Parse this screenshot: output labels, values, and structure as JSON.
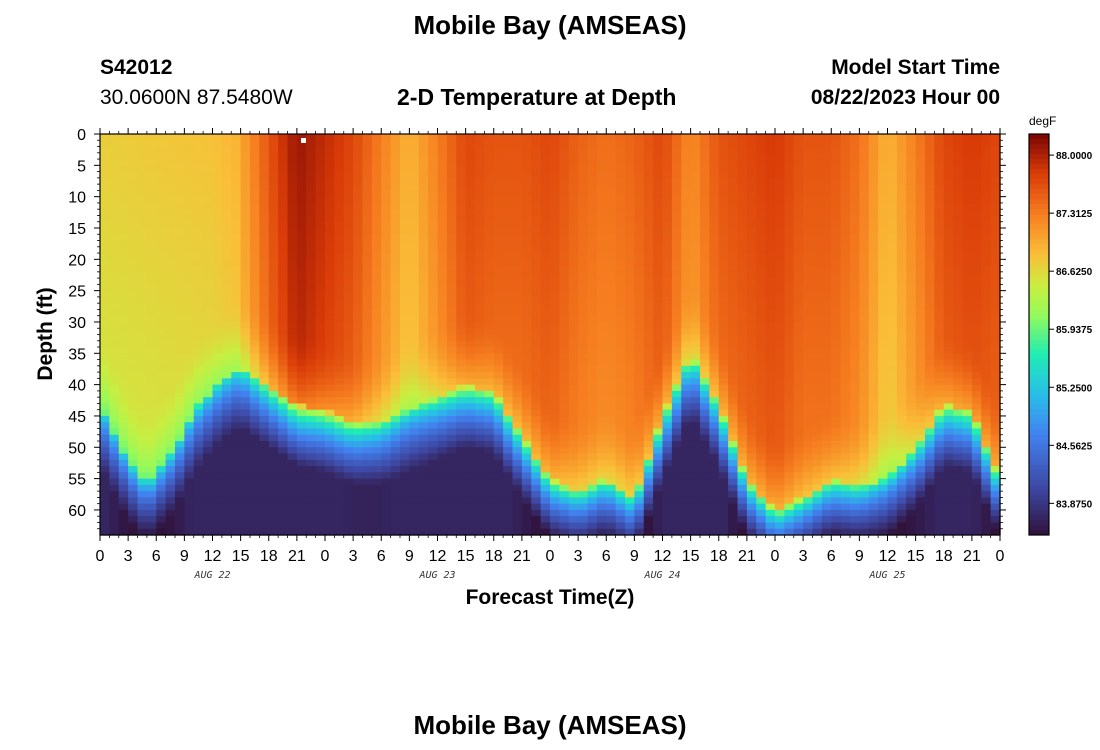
{
  "header": {
    "title": "Mobile Bay (AMSEAS)",
    "station_id": "S42012",
    "station_coords": "30.0600N  87.5480W",
    "plot_title": "2-D Temperature at Depth",
    "model_start_label": "Model Start Time",
    "model_start_value": "08/22/2023 Hour 00"
  },
  "footer": {
    "title": "Mobile Bay (AMSEAS)"
  },
  "chart_data": {
    "type": "heatmap",
    "title": "2-D Temperature at Depth",
    "xlabel": "Forecast Time(Z)",
    "ylabel": "Depth (ft)",
    "x_unit": "hours since 08/22/2023 00Z",
    "x_tick_labels": [
      "0",
      "3",
      "6",
      "9",
      "12",
      "15",
      "18",
      "21",
      "0",
      "3",
      "6",
      "9",
      "12",
      "15",
      "18",
      "21",
      "0",
      "3",
      "6",
      "9",
      "12",
      "15",
      "18",
      "21",
      "0",
      "3",
      "6",
      "9",
      "12",
      "15",
      "18",
      "21",
      "0"
    ],
    "x_day_labels": [
      "AUG 22",
      "AUG 23",
      "AUG 24",
      "AUG 25"
    ],
    "xlim": [
      0,
      96
    ],
    "ylim": [
      0,
      64
    ],
    "y_ticks": [
      0,
      5,
      10,
      15,
      20,
      25,
      30,
      35,
      40,
      45,
      50,
      55,
      60
    ],
    "colorbar": {
      "unit": "degF",
      "min": 83.5,
      "max": 88.25,
      "tick_values": [
        88.0,
        87.3125,
        86.625,
        85.9375,
        85.25,
        84.5625,
        83.875
      ],
      "tick_labels": [
        "88.0000",
        "87.3125",
        "86.6250",
        "85.9375",
        "85.2500",
        "84.5625",
        "83.8750"
      ]
    },
    "thermocline_depth_ft": {
      "hours": [
        0,
        3,
        5,
        8,
        10,
        13,
        15,
        18,
        21,
        24,
        27,
        30,
        33,
        36,
        39,
        42,
        45,
        48,
        51,
        54,
        57,
        60,
        63,
        66,
        69,
        72,
        75,
        78,
        81,
        84,
        87,
        90,
        93,
        96
      ],
      "values": [
        43,
        52,
        56,
        50,
        44,
        39,
        37,
        40,
        43,
        44,
        46,
        46,
        44,
        42,
        40,
        41,
        48,
        55,
        57,
        55,
        58,
        45,
        35,
        43,
        55,
        60,
        58,
        55,
        56,
        55,
        50,
        43,
        44,
        55
      ]
    },
    "surface_layer": {
      "hours": [
        0,
        12,
        14.5,
        18,
        21,
        24,
        27,
        30,
        33,
        36,
        39,
        42,
        45,
        48,
        51,
        54,
        57,
        60,
        63,
        66,
        69,
        72,
        75,
        78,
        81,
        84,
        87,
        90,
        93,
        96
      ],
      "values": [
        86.7,
        86.8,
        86.9,
        87.6,
        88.1,
        87.9,
        87.7,
        87.3,
        86.9,
        87.3,
        87.7,
        87.6,
        87.6,
        87.7,
        87.5,
        87.4,
        87.5,
        87.7,
        87.2,
        87.6,
        87.7,
        87.8,
        87.6,
        87.6,
        87.4,
        86.9,
        87.3,
        87.7,
        87.8,
        87.7
      ]
    }
  }
}
